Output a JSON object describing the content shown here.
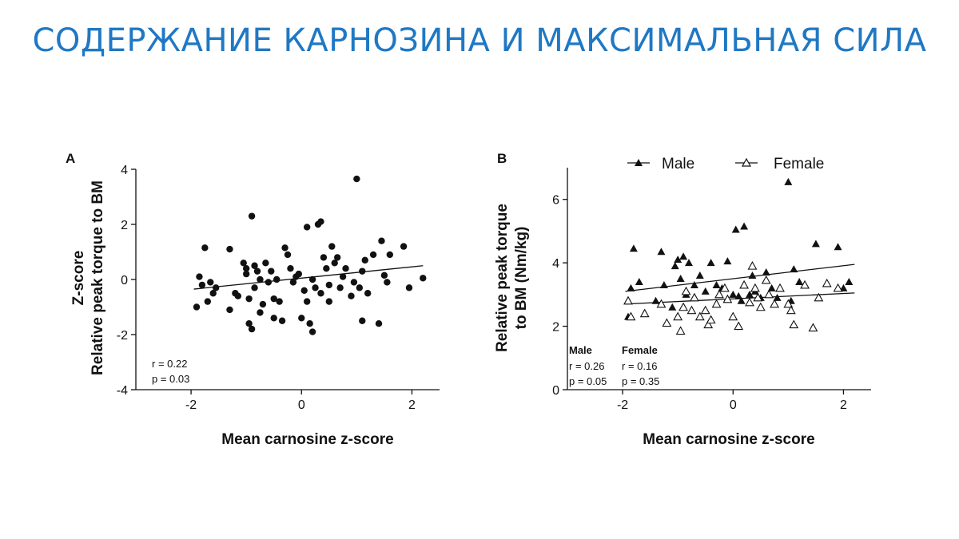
{
  "slide": {
    "title": "СОДЕРЖАНИЕ КАРНОЗИНА И МАКСИМАЛЬНАЯ СИЛА"
  },
  "chart_data": [
    {
      "type": "scatter",
      "panel_label": "A",
      "xlabel": "Mean carnosine z-score",
      "ylabel_lines": [
        "Z-score",
        "Relative peak torque to BM"
      ],
      "xlim": [
        -3,
        2.5
      ],
      "ylim": [
        -4,
        4
      ],
      "xticks": [
        -2,
        0,
        2
      ],
      "yticks": [
        -4,
        -2,
        0,
        2,
        4
      ],
      "xtick_labels": [
        "-2",
        "0",
        "2"
      ],
      "ytick_labels": [
        "-4",
        "-2",
        "0",
        "2",
        "4"
      ],
      "stats": [
        "r = 0.22",
        "p = 0.03"
      ],
      "trendlines": [
        {
          "x": [
            -1.95,
            2.2
          ],
          "y": [
            -0.35,
            0.5
          ]
        }
      ],
      "series": [
        {
          "marker": "filled-circle",
          "points": [
            [
              -1.9,
              -1.0
            ],
            [
              -1.85,
              0.1
            ],
            [
              -1.8,
              -0.2
            ],
            [
              -1.75,
              1.15
            ],
            [
              -1.7,
              -0.8
            ],
            [
              -1.65,
              -0.1
            ],
            [
              -1.6,
              -0.5
            ],
            [
              -1.55,
              -0.3
            ],
            [
              -1.3,
              1.1
            ],
            [
              -1.3,
              -1.1
            ],
            [
              -1.2,
              -0.5
            ],
            [
              -1.15,
              -0.6
            ],
            [
              -1.05,
              0.6
            ],
            [
              -1.0,
              0.4
            ],
            [
              -1.0,
              0.2
            ],
            [
              -0.95,
              -0.7
            ],
            [
              -0.95,
              -1.6
            ],
            [
              -0.9,
              -1.8
            ],
            [
              -0.9,
              2.3
            ],
            [
              -0.85,
              0.5
            ],
            [
              -0.85,
              -0.3
            ],
            [
              -0.8,
              0.3
            ],
            [
              -0.75,
              -1.2
            ],
            [
              -0.75,
              0.0
            ],
            [
              -0.7,
              -0.9
            ],
            [
              -0.65,
              0.6
            ],
            [
              -0.6,
              -0.1
            ],
            [
              -0.55,
              0.3
            ],
            [
              -0.5,
              -0.7
            ],
            [
              -0.5,
              -1.4
            ],
            [
              -0.45,
              0.0
            ],
            [
              -0.4,
              -0.8
            ],
            [
              -0.35,
              -1.5
            ],
            [
              -0.3,
              1.15
            ],
            [
              -0.25,
              0.9
            ],
            [
              -0.2,
              0.4
            ],
            [
              -0.15,
              -0.1
            ],
            [
              -0.1,
              0.1
            ],
            [
              -0.05,
              0.2
            ],
            [
              0.0,
              -1.4
            ],
            [
              0.05,
              -0.4
            ],
            [
              0.1,
              -0.8
            ],
            [
              0.1,
              1.9
            ],
            [
              0.15,
              -1.6
            ],
            [
              0.2,
              -1.9
            ],
            [
              0.2,
              0.0
            ],
            [
              0.25,
              -0.3
            ],
            [
              0.3,
              2.0
            ],
            [
              0.35,
              2.1
            ],
            [
              0.35,
              -0.5
            ],
            [
              0.4,
              0.8
            ],
            [
              0.45,
              0.4
            ],
            [
              0.5,
              -0.8
            ],
            [
              0.5,
              -0.2
            ],
            [
              0.55,
              1.2
            ],
            [
              0.6,
              0.6
            ],
            [
              0.65,
              0.8
            ],
            [
              0.7,
              -0.3
            ],
            [
              0.75,
              0.1
            ],
            [
              0.8,
              0.4
            ],
            [
              0.9,
              -0.6
            ],
            [
              0.95,
              -0.1
            ],
            [
              1.0,
              3.65
            ],
            [
              1.05,
              -0.3
            ],
            [
              1.1,
              -1.5
            ],
            [
              1.1,
              0.3
            ],
            [
              1.15,
              0.7
            ],
            [
              1.2,
              -0.5
            ],
            [
              1.3,
              0.9
            ],
            [
              1.4,
              -1.6
            ],
            [
              1.45,
              1.4
            ],
            [
              1.5,
              0.15
            ],
            [
              1.55,
              -0.1
            ],
            [
              1.6,
              0.9
            ],
            [
              1.85,
              1.2
            ],
            [
              1.95,
              -0.3
            ],
            [
              2.2,
              0.05
            ]
          ]
        }
      ]
    },
    {
      "type": "scatter",
      "panel_label": "B",
      "xlabel": "Mean carnosine z-score",
      "ylabel_lines": [
        "Relative peak torque",
        "to BM (Nm/kg)"
      ],
      "xlim": [
        -3,
        2.5
      ],
      "ylim": [
        0,
        7
      ],
      "xticks": [
        -2,
        0,
        2
      ],
      "yticks": [
        0,
        2,
        4,
        6
      ],
      "xtick_labels": [
        "-2",
        "0",
        "2"
      ],
      "ytick_labels": [
        "0",
        "2",
        "4",
        "6"
      ],
      "legend": {
        "placement": "top",
        "entries": [
          "Male",
          "Female"
        ]
      },
      "stats_columns": [
        {
          "header": "Male",
          "lines": [
            "r = 0.26",
            "p = 0.05"
          ]
        },
        {
          "header": "Female",
          "lines": [
            "r = 0.16",
            "p = 0.35"
          ]
        }
      ],
      "trendlines": [
        {
          "series": "Male",
          "x": [
            -1.95,
            2.2
          ],
          "y": [
            3.1,
            3.95
          ]
        },
        {
          "series": "Female",
          "x": [
            -1.95,
            2.2
          ],
          "y": [
            2.7,
            3.05
          ]
        }
      ],
      "series": [
        {
          "name": "Male",
          "marker": "filled-triangle",
          "points": [
            [
              -1.9,
              2.3
            ],
            [
              -1.85,
              3.2
            ],
            [
              -1.8,
              4.45
            ],
            [
              -1.7,
              3.4
            ],
            [
              -1.4,
              2.8
            ],
            [
              -1.3,
              4.35
            ],
            [
              -1.25,
              3.3
            ],
            [
              -1.1,
              2.6
            ],
            [
              -1.05,
              3.9
            ],
            [
              -1.0,
              4.1
            ],
            [
              -0.95,
              3.5
            ],
            [
              -0.9,
              4.2
            ],
            [
              -0.85,
              3.0
            ],
            [
              -0.8,
              4.0
            ],
            [
              -0.7,
              3.3
            ],
            [
              -0.6,
              3.6
            ],
            [
              -0.5,
              3.1
            ],
            [
              -0.4,
              4.0
            ],
            [
              -0.3,
              3.3
            ],
            [
              -0.2,
              3.2
            ],
            [
              -0.1,
              4.05
            ],
            [
              0.0,
              3.0
            ],
            [
              0.05,
              5.05
            ],
            [
              0.1,
              2.95
            ],
            [
              0.15,
              2.8
            ],
            [
              0.2,
              5.15
            ],
            [
              0.3,
              3.0
            ],
            [
              0.35,
              3.6
            ],
            [
              0.4,
              3.1
            ],
            [
              0.5,
              2.9
            ],
            [
              0.6,
              3.7
            ],
            [
              0.7,
              3.2
            ],
            [
              0.8,
              2.9
            ],
            [
              1.0,
              6.55
            ],
            [
              1.05,
              2.8
            ],
            [
              1.1,
              3.8
            ],
            [
              1.2,
              3.4
            ],
            [
              1.3,
              3.3
            ],
            [
              1.5,
              4.6
            ],
            [
              1.9,
              4.5
            ],
            [
              2.0,
              3.2
            ],
            [
              2.1,
              3.4
            ]
          ]
        },
        {
          "name": "Female",
          "marker": "open-triangle",
          "points": [
            [
              -1.9,
              2.8
            ],
            [
              -1.85,
              2.3
            ],
            [
              -1.6,
              2.4
            ],
            [
              -1.3,
              2.7
            ],
            [
              -1.2,
              2.1
            ],
            [
              -1.0,
              2.3
            ],
            [
              -0.95,
              1.85
            ],
            [
              -0.9,
              2.6
            ],
            [
              -0.85,
              3.1
            ],
            [
              -0.75,
              2.5
            ],
            [
              -0.7,
              2.9
            ],
            [
              -0.6,
              2.3
            ],
            [
              -0.5,
              2.5
            ],
            [
              -0.45,
              2.05
            ],
            [
              -0.4,
              2.2
            ],
            [
              -0.3,
              2.7
            ],
            [
              -0.25,
              3.0
            ],
            [
              -0.15,
              3.2
            ],
            [
              -0.1,
              2.85
            ],
            [
              0.0,
              2.3
            ],
            [
              0.1,
              2.0
            ],
            [
              0.2,
              3.3
            ],
            [
              0.3,
              2.75
            ],
            [
              0.35,
              3.9
            ],
            [
              0.4,
              3.2
            ],
            [
              0.45,
              2.9
            ],
            [
              0.5,
              2.6
            ],
            [
              0.6,
              3.45
            ],
            [
              0.65,
              3.0
            ],
            [
              0.75,
              2.7
            ],
            [
              0.85,
              3.2
            ],
            [
              1.0,
              2.7
            ],
            [
              1.05,
              2.5
            ],
            [
              1.1,
              2.05
            ],
            [
              1.3,
              3.3
            ],
            [
              1.45,
              1.95
            ],
            [
              1.55,
              2.9
            ],
            [
              1.7,
              3.35
            ],
            [
              1.9,
              3.2
            ]
          ]
        }
      ]
    }
  ]
}
